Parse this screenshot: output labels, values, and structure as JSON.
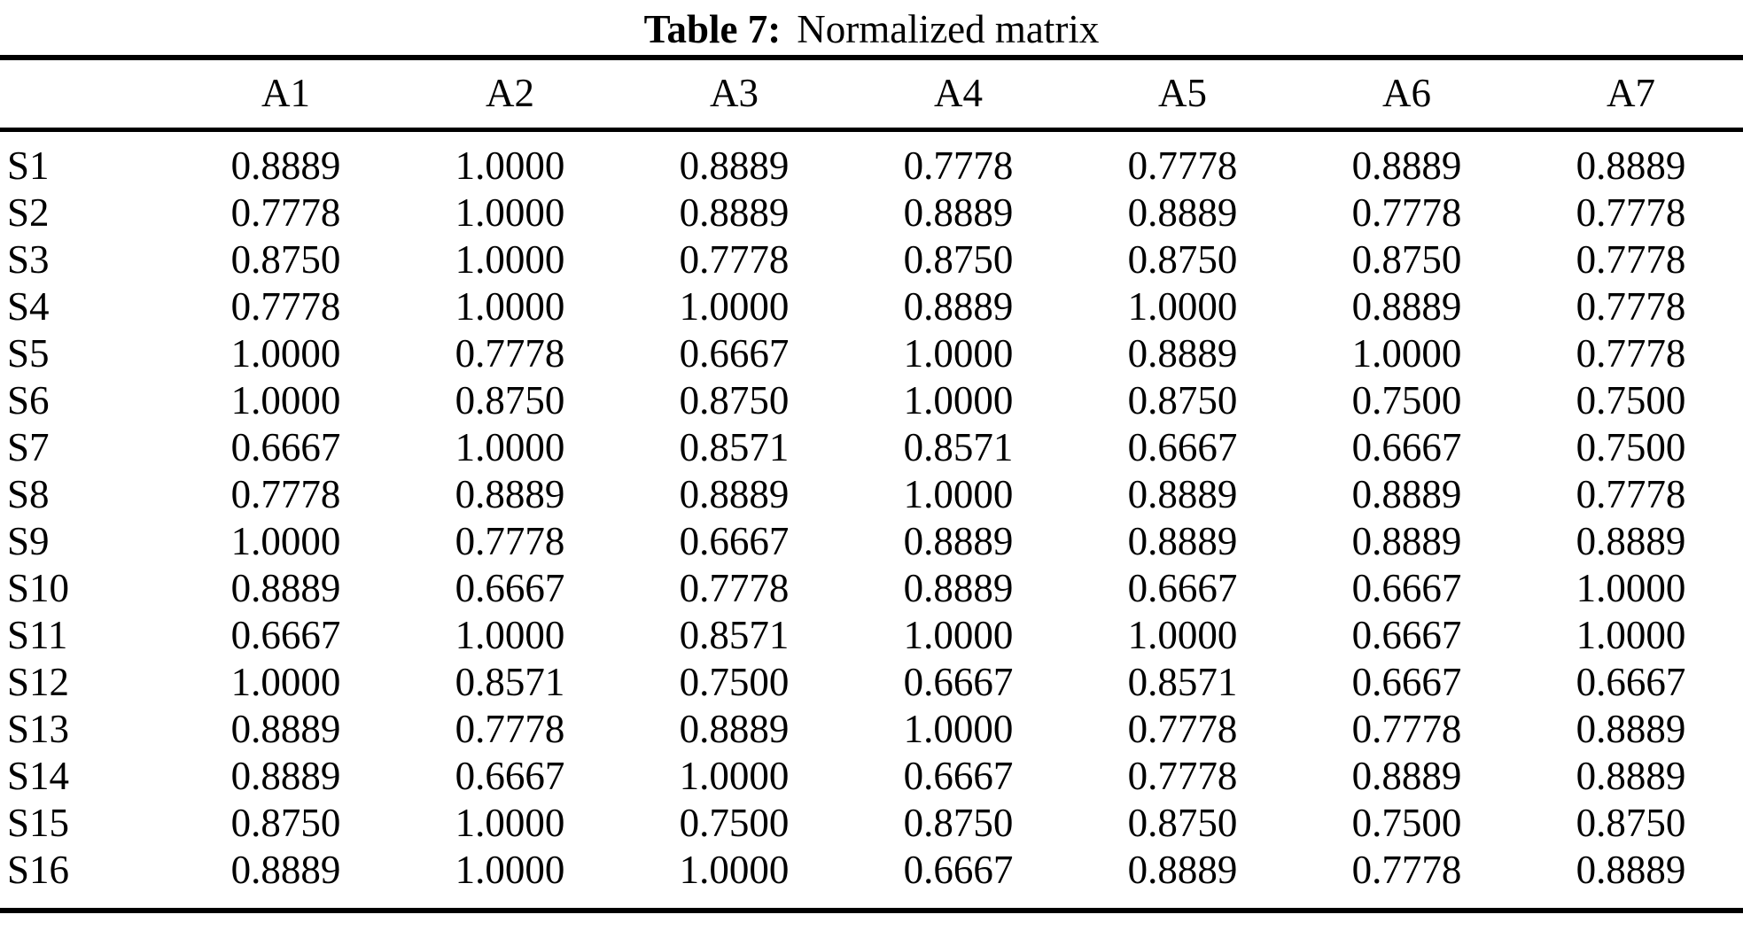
{
  "caption": {
    "label": "Table 7:",
    "title": "Normalized matrix"
  },
  "table": {
    "corner_header": "",
    "columns": [
      "A1",
      "A2",
      "A3",
      "A4",
      "A5",
      "A6",
      "A7"
    ],
    "rows": [
      {
        "label": "S1",
        "values": [
          "0.8889",
          "1.0000",
          "0.8889",
          "0.7778",
          "0.7778",
          "0.8889",
          "0.8889"
        ]
      },
      {
        "label": "S2",
        "values": [
          "0.7778",
          "1.0000",
          "0.8889",
          "0.8889",
          "0.8889",
          "0.7778",
          "0.7778"
        ]
      },
      {
        "label": "S3",
        "values": [
          "0.8750",
          "1.0000",
          "0.7778",
          "0.8750",
          "0.8750",
          "0.8750",
          "0.7778"
        ]
      },
      {
        "label": "S4",
        "values": [
          "0.7778",
          "1.0000",
          "1.0000",
          "0.8889",
          "1.0000",
          "0.8889",
          "0.7778"
        ]
      },
      {
        "label": "S5",
        "values": [
          "1.0000",
          "0.7778",
          "0.6667",
          "1.0000",
          "0.8889",
          "1.0000",
          "0.7778"
        ]
      },
      {
        "label": "S6",
        "values": [
          "1.0000",
          "0.8750",
          "0.8750",
          "1.0000",
          "0.8750",
          "0.7500",
          "0.7500"
        ]
      },
      {
        "label": "S7",
        "values": [
          "0.6667",
          "1.0000",
          "0.8571",
          "0.8571",
          "0.6667",
          "0.6667",
          "0.7500"
        ]
      },
      {
        "label": "S8",
        "values": [
          "0.7778",
          "0.8889",
          "0.8889",
          "1.0000",
          "0.8889",
          "0.8889",
          "0.7778"
        ]
      },
      {
        "label": "S9",
        "values": [
          "1.0000",
          "0.7778",
          "0.6667",
          "0.8889",
          "0.8889",
          "0.8889",
          "0.8889"
        ]
      },
      {
        "label": "S10",
        "values": [
          "0.8889",
          "0.6667",
          "0.7778",
          "0.8889",
          "0.6667",
          "0.6667",
          "1.0000"
        ]
      },
      {
        "label": "S11",
        "values": [
          "0.6667",
          "1.0000",
          "0.8571",
          "1.0000",
          "1.0000",
          "0.6667",
          "1.0000"
        ]
      },
      {
        "label": "S12",
        "values": [
          "1.0000",
          "0.8571",
          "0.7500",
          "0.6667",
          "0.8571",
          "0.6667",
          "0.6667"
        ]
      },
      {
        "label": "S13",
        "values": [
          "0.8889",
          "0.7778",
          "0.8889",
          "1.0000",
          "0.7778",
          "0.7778",
          "0.8889"
        ]
      },
      {
        "label": "S14",
        "values": [
          "0.8889",
          "0.6667",
          "1.0000",
          "0.6667",
          "0.7778",
          "0.8889",
          "0.8889"
        ]
      },
      {
        "label": "S15",
        "values": [
          "0.8750",
          "1.0000",
          "0.7500",
          "0.8750",
          "0.8750",
          "0.7500",
          "0.8750"
        ]
      },
      {
        "label": "S16",
        "values": [
          "0.8889",
          "1.0000",
          "1.0000",
          "0.6667",
          "0.8889",
          "0.7778",
          "0.8889"
        ]
      }
    ]
  },
  "colors": {
    "text": "#000000",
    "background": "#ffffff",
    "rule": "#000000"
  }
}
